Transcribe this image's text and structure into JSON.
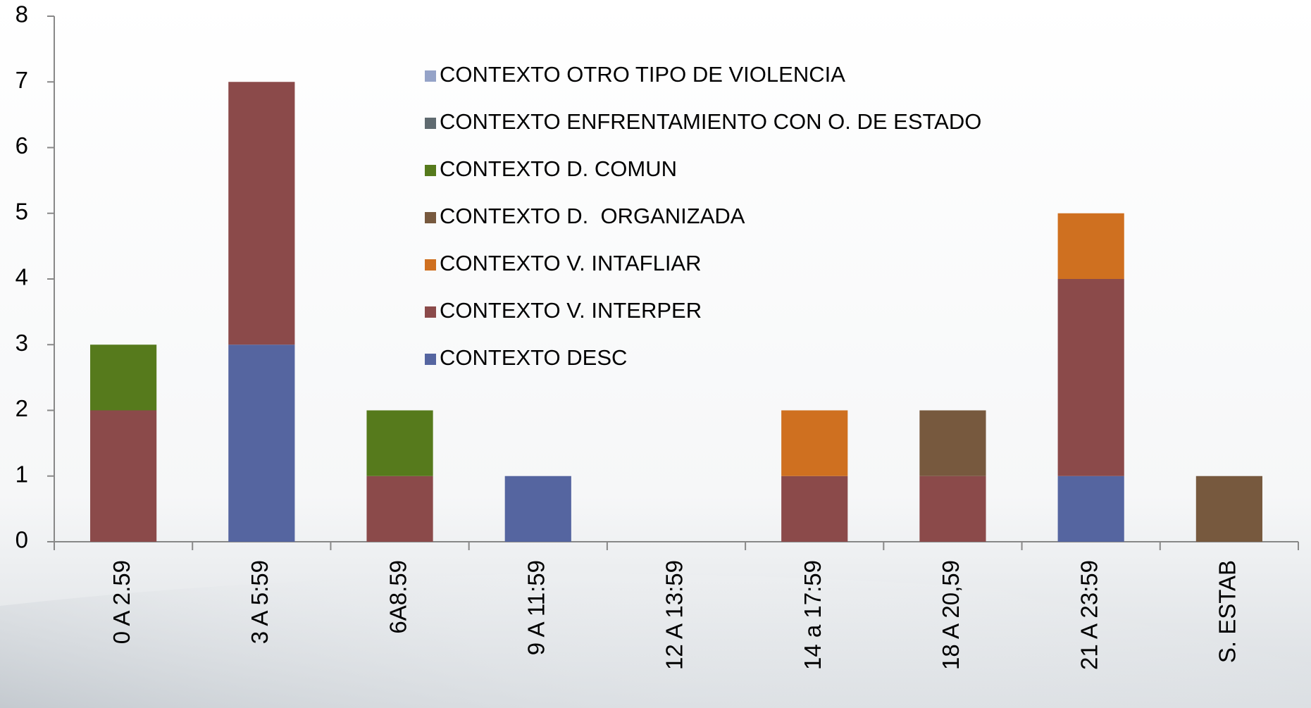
{
  "chart_data": {
    "type": "bar",
    "stacked": true,
    "categories": [
      "0 A 2.59",
      "3 A 5:59",
      "6A8.59",
      "9 A 11:59",
      "12 A 13:59",
      "14 a 17:59",
      "18 A 20,59",
      "21 A 23:59",
      "S. ESTAB"
    ],
    "series": [
      {
        "name": "CONTEXTO DESC",
        "color": "#5565a0",
        "values": [
          0,
          3,
          0,
          1,
          0,
          0,
          0,
          1,
          0
        ]
      },
      {
        "name": "CONTEXTO V. INTERPER",
        "color": "#8b4a4a",
        "values": [
          2,
          4,
          1,
          0,
          0,
          1,
          1,
          3,
          0
        ]
      },
      {
        "name": "CONTEXTO V. INTAFLIAR",
        "color": "#cf7020",
        "values": [
          0,
          0,
          0,
          0,
          0,
          1,
          0,
          1,
          0
        ]
      },
      {
        "name": "CONTEXTO D.  ORGANIZADA",
        "color": "#77593e",
        "values": [
          0,
          0,
          0,
          0,
          0,
          0,
          1,
          0,
          1
        ]
      },
      {
        "name": "CONTEXTO D. COMUN",
        "color": "#567a1c",
        "values": [
          1,
          0,
          1,
          0,
          0,
          0,
          0,
          0,
          0
        ]
      },
      {
        "name": "CONTEXTO ENFRENTAMIENTO CON O. DE ESTADO",
        "color": "#5f6a70",
        "values": [
          0,
          0,
          0,
          0,
          0,
          0,
          0,
          0,
          0
        ]
      },
      {
        "name": "CONTEXTO OTRO TIPO DE VIOLENCIA",
        "color": "#95a3c8",
        "values": [
          0,
          0,
          0,
          0,
          0,
          0,
          0,
          0,
          0
        ]
      }
    ],
    "ylim": [
      0,
      8
    ],
    "yticks": [
      0,
      1,
      2,
      3,
      4,
      5,
      6,
      7,
      8
    ]
  }
}
